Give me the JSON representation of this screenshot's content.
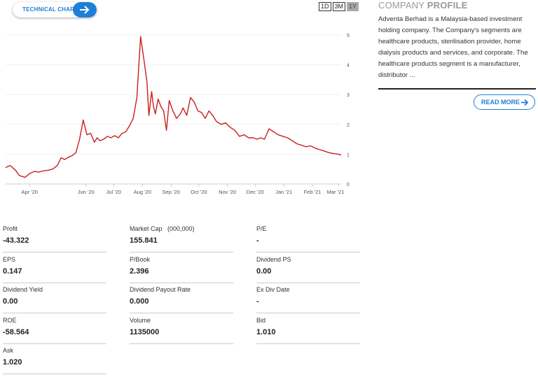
{
  "technical_chart": {
    "label": "TECHNICAL CHART",
    "icon": "arrow-right-icon",
    "color": "#1e7fd8"
  },
  "periods": [
    {
      "label": "1D",
      "active": false
    },
    {
      "label": "3M",
      "active": false
    },
    {
      "label": "1Y",
      "active": true
    }
  ],
  "chart_data": {
    "type": "line",
    "series_color": "#cc1f1f",
    "x_tick_labels": [
      "Apr '20",
      "Jun '20",
      "Jul '20",
      "Aug '20",
      "Sep '20",
      "Oct '20",
      "Nov '20",
      "Dec '20",
      "Jan '21",
      "Feb '21",
      "Mar '21"
    ],
    "y_tick_labels": [
      "0",
      "1",
      "2",
      "3",
      "4",
      "5"
    ],
    "ylim": [
      0,
      5.4
    ],
    "y_axis_position": "right",
    "grid": "horizontal",
    "x": [
      "2020-03-06",
      "2020-03-11",
      "2020-03-17",
      "2020-03-21",
      "2020-03-27",
      "2020-04-01",
      "2020-04-06",
      "2020-04-11",
      "2020-04-16",
      "2020-04-21",
      "2020-04-26",
      "2020-05-01",
      "2020-05-05",
      "2020-05-09",
      "2020-05-13",
      "2020-05-17",
      "2020-05-21",
      "2020-05-25",
      "2020-05-29",
      "2020-06-02",
      "2020-06-06",
      "2020-06-10",
      "2020-06-13",
      "2020-06-16",
      "2020-06-20",
      "2020-06-24",
      "2020-06-28",
      "2020-07-02",
      "2020-07-06",
      "2020-07-10",
      "2020-07-14",
      "2020-07-18",
      "2020-07-22",
      "2020-07-26",
      "2020-07-30",
      "2020-08-03",
      "2020-08-06",
      "2020-08-08",
      "2020-08-11",
      "2020-08-13",
      "2020-08-15",
      "2020-08-18",
      "2020-08-21",
      "2020-08-24",
      "2020-08-27",
      "2020-08-30",
      "2020-09-03",
      "2020-09-07",
      "2020-09-11",
      "2020-09-14",
      "2020-09-18",
      "2020-09-22",
      "2020-09-26",
      "2020-09-30",
      "2020-10-04",
      "2020-10-08",
      "2020-10-12",
      "2020-10-16",
      "2020-10-20",
      "2020-10-25",
      "2020-10-30",
      "2020-11-04",
      "2020-11-09",
      "2020-11-14",
      "2020-11-19",
      "2020-11-24",
      "2020-11-29",
      "2020-12-03",
      "2020-12-07",
      "2020-12-11",
      "2020-12-16",
      "2020-12-21",
      "2020-12-26",
      "2020-12-31",
      "2021-01-05",
      "2021-01-10",
      "2021-01-15",
      "2021-01-20",
      "2021-01-25",
      "2021-01-30",
      "2021-02-04",
      "2021-02-09",
      "2021-02-14",
      "2021-02-19",
      "2021-02-24",
      "2021-03-01",
      "2021-03-04"
    ],
    "values": [
      0.55,
      0.62,
      0.45,
      0.28,
      0.22,
      0.35,
      0.42,
      0.4,
      0.44,
      0.46,
      0.5,
      0.62,
      0.88,
      0.82,
      0.9,
      0.95,
      1.05,
      1.5,
      2.15,
      1.65,
      1.7,
      1.4,
      1.55,
      1.45,
      1.5,
      1.6,
      1.55,
      1.62,
      1.55,
      1.7,
      1.75,
      1.95,
      2.2,
      2.9,
      4.95,
      4.1,
      3.4,
      2.3,
      3.1,
      2.6,
      2.35,
      2.85,
      2.6,
      2.45,
      1.8,
      2.8,
      2.45,
      2.2,
      2.35,
      2.55,
      2.3,
      2.9,
      2.75,
      2.45,
      2.4,
      2.2,
      2.45,
      2.3,
      2.1,
      2.0,
      2.05,
      1.9,
      1.8,
      1.6,
      1.65,
      1.55,
      1.55,
      1.5,
      1.55,
      1.5,
      1.85,
      1.75,
      1.65,
      1.6,
      1.55,
      1.45,
      1.35,
      1.3,
      1.25,
      1.28,
      1.2,
      1.15,
      1.1,
      1.05,
      1.02,
      1.0,
      0.97
    ]
  },
  "company_profile": {
    "title_light": "COMPANY",
    "title_bold": "PROFILE",
    "description": "Adventa Berhad is a Malaysia-based investment holding company. The Company's segments are healthcare products, sterilisation provider, home dialysis products and services, and corporate. The healthcare products segment is a manufacturer, distributor ...",
    "read_more": "READ MORE",
    "read_more_icon": "arrow-right-icon"
  },
  "stats": [
    {
      "label": "Profit",
      "value": "-43.322"
    },
    {
      "label": "Market Cap   (000,000)",
      "value": "155.841"
    },
    {
      "label": "P/E",
      "value": "-"
    },
    {
      "label": "EPS",
      "value": "0.147"
    },
    {
      "label": "P/Book",
      "value": "2.396"
    },
    {
      "label": "Dividend PS",
      "value": "0.00"
    },
    {
      "label": "Dividend Yield",
      "value": "0.00"
    },
    {
      "label": "Dividend Payout Rate",
      "value": "0.000"
    },
    {
      "label": "Ex Div Date",
      "value": "-"
    },
    {
      "label": "ROE",
      "value": "-58.564"
    },
    {
      "label": "Volume",
      "value": "1135000"
    },
    {
      "label": "Bid",
      "value": "1.010"
    },
    {
      "label": "Ask",
      "value": "1.020"
    }
  ]
}
